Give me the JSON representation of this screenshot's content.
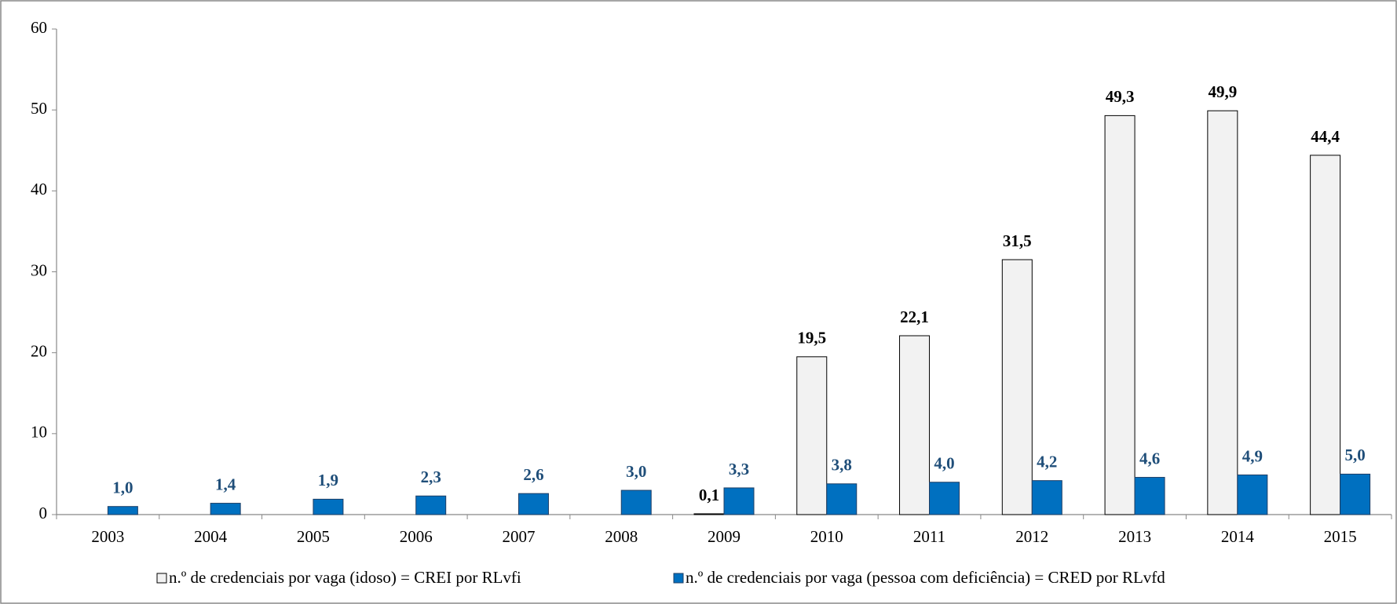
{
  "chart_data": {
    "type": "bar",
    "categories": [
      "2003",
      "2004",
      "2005",
      "2006",
      "2007",
      "2008",
      "2009",
      "2010",
      "2011",
      "2012",
      "2013",
      "2014",
      "2015"
    ],
    "series": [
      {
        "name": "n.º de credenciais por vaga (idoso) = CREI por RLvfi",
        "color": "#f2f2f2",
        "values": [
          null,
          null,
          null,
          null,
          null,
          null,
          0.1,
          19.5,
          22.1,
          31.5,
          49.3,
          49.9,
          44.4
        ],
        "value_labels": [
          null,
          null,
          null,
          null,
          null,
          null,
          "0,1",
          "19,5",
          "22,1",
          "31,5",
          "49,3",
          "49,9",
          "44,4"
        ]
      },
      {
        "name": "n.º de credenciais por vaga (pessoa com deficiência) = CRED por RLvfd",
        "color": "#0070c0",
        "values": [
          1.0,
          1.4,
          1.9,
          2.3,
          2.6,
          3.0,
          3.3,
          3.8,
          4.0,
          4.2,
          4.6,
          4.9,
          5.0
        ],
        "value_labels": [
          "1,0",
          "1,4",
          "1,9",
          "2,3",
          "2,6",
          "3,0",
          "3,3",
          "3,8",
          "4,0",
          "4,2",
          "4,6",
          "4,9",
          "5,0"
        ]
      }
    ],
    "ylim": [
      0,
      60
    ],
    "yticks": [
      0,
      10,
      20,
      30,
      40,
      50,
      60
    ],
    "grid": false,
    "legend": "bottom"
  }
}
